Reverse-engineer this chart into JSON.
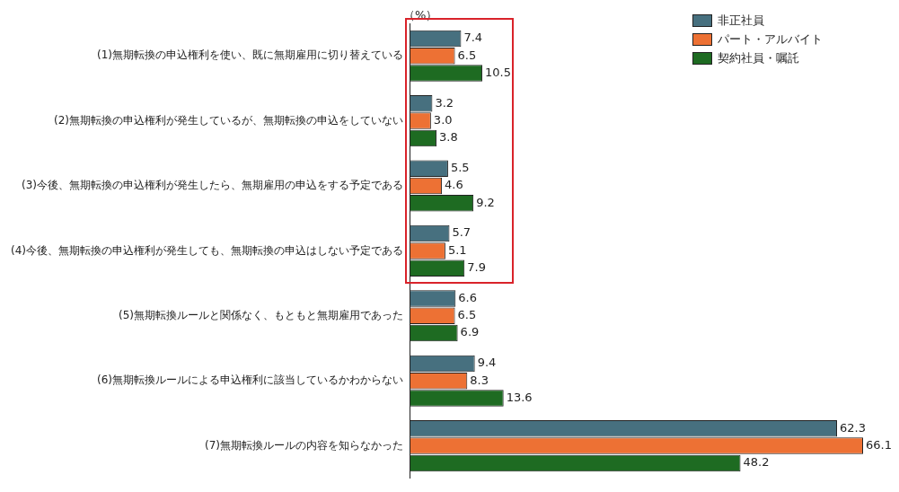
{
  "chart_data": {
    "type": "bar",
    "orientation": "horizontal",
    "xlabel": "（%）",
    "categories": [
      "(1)無期転換の申込権利を使い、既に無期雇用に切り替えている",
      "(2)無期転換の申込権利が発生しているが、無期転換の申込をしていない",
      "(3)今後、無期転換の申込権利が発生したら、無期雇用の申込をする予定である",
      "(4)今後、無期転換の申込権利が発生しても、無期転換の申込はしない予定である",
      "(5)無期転換ルールと関係なく、もともと無期雇用であった",
      "(6)無期転換ルールによる申込権利に該当しているかわからない",
      "(7)無期転換ルールの内容を知らなかった"
    ],
    "series": [
      {
        "name": "非正社員",
        "color": "#47707f",
        "values": [
          7.4,
          3.2,
          5.5,
          5.7,
          6.6,
          9.4,
          62.3
        ],
        "value_labels": [
          "7.4",
          "3.2",
          "5.5",
          "5.7",
          "6.6",
          "9.4",
          "62.3"
        ]
      },
      {
        "name": "パート・アルバイト",
        "color": "#ed7134",
        "values": [
          6.5,
          3.0,
          4.6,
          5.1,
          6.5,
          8.3,
          66.1
        ],
        "value_labels": [
          "6.5",
          "3.0",
          "4.6",
          "5.1",
          "6.5",
          "8.3",
          "66.1"
        ]
      },
      {
        "name": "契約社員・嘱託",
        "color": "#1e6b22",
        "values": [
          10.5,
          3.8,
          9.2,
          7.9,
          6.9,
          13.6,
          48.2
        ],
        "value_labels": [
          "10.5",
          "3.8",
          "9.2",
          "7.9",
          "6.9",
          "13.6",
          "48.2"
        ]
      }
    ],
    "tick_labels": "y",
    "grid": false,
    "legend": "top right"
  }
}
